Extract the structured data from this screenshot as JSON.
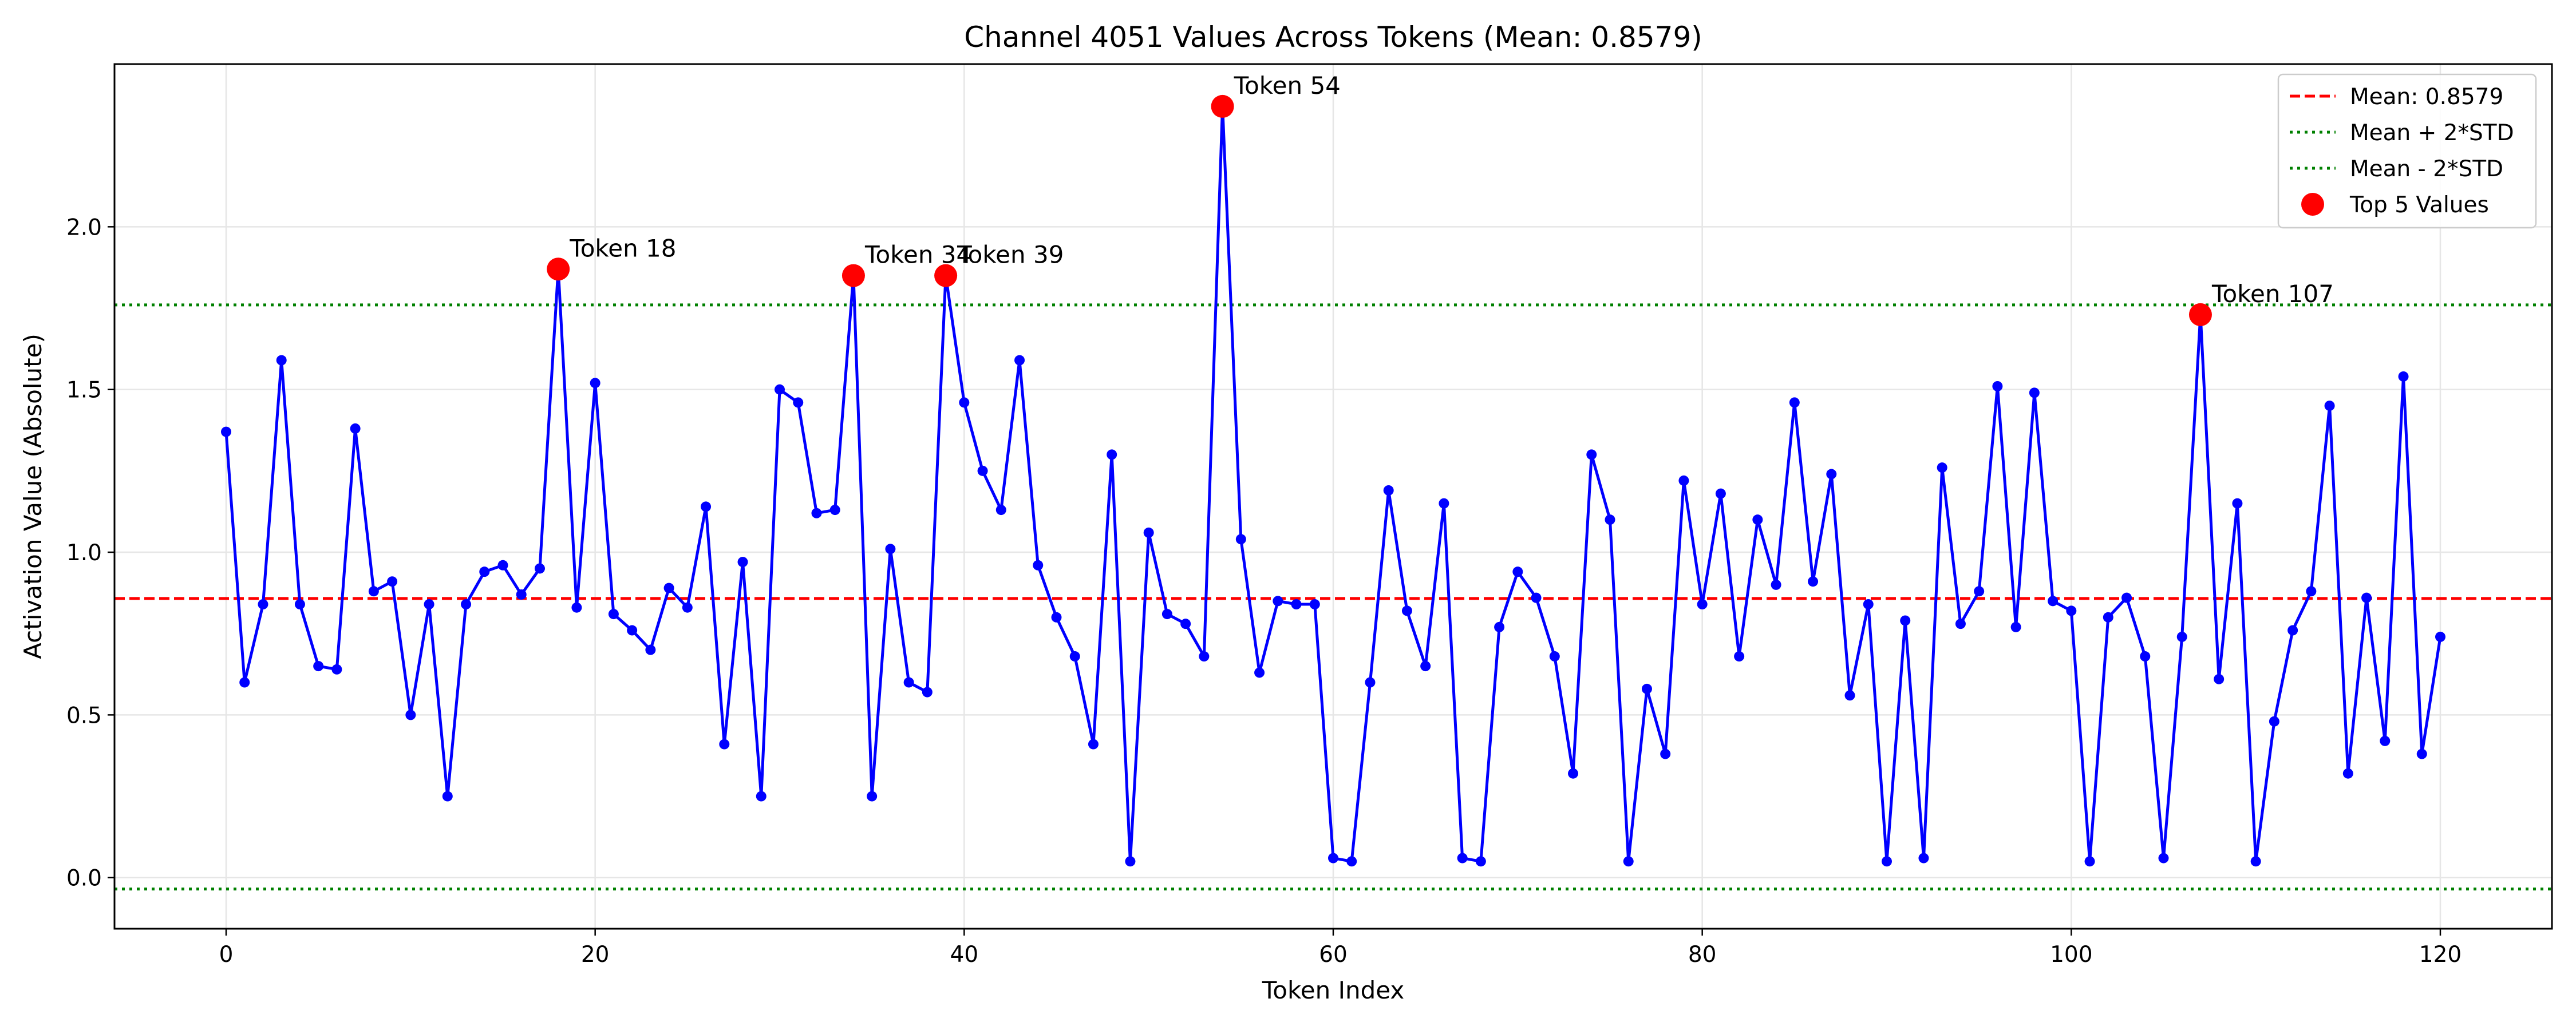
{
  "chart_data": {
    "type": "line",
    "title": "Channel 4051 Values Across Tokens (Mean: 0.8579)",
    "xlabel": "Token Index",
    "ylabel": "Activation Value (Absolute)",
    "xlim": [
      -6.05,
      126.05
    ],
    "ylim": [
      -0.157,
      2.5
    ],
    "xticks": [
      0,
      20,
      40,
      60,
      80,
      100,
      120
    ],
    "yticks": [
      0.0,
      0.5,
      1.0,
      1.5,
      2.0
    ],
    "grid": true,
    "legend_position": "top-right",
    "x": [
      0,
      1,
      2,
      3,
      4,
      5,
      6,
      7,
      8,
      9,
      10,
      11,
      12,
      13,
      14,
      15,
      16,
      17,
      18,
      19,
      20,
      21,
      22,
      23,
      24,
      25,
      26,
      27,
      28,
      29,
      30,
      31,
      32,
      33,
      34,
      35,
      36,
      37,
      38,
      39,
      40,
      41,
      42,
      43,
      44,
      45,
      46,
      47,
      48,
      49,
      50,
      51,
      52,
      53,
      54,
      55,
      56,
      57,
      58,
      59,
      60,
      61,
      62,
      63,
      64,
      65,
      66,
      67,
      68,
      69,
      70,
      71,
      72,
      73,
      74,
      75,
      76,
      77,
      78,
      79,
      80,
      81,
      82,
      83,
      84,
      85,
      86,
      87,
      88,
      89,
      90,
      91,
      92,
      93,
      94,
      95,
      96,
      97,
      98,
      99,
      100,
      101,
      102,
      103,
      104,
      105,
      106,
      107,
      108,
      109,
      110,
      111,
      112,
      113,
      114,
      115,
      116,
      117,
      118,
      119,
      120
    ],
    "series": [
      {
        "color": "#0000ff",
        "values": [
          1.37,
          0.6,
          0.84,
          1.59,
          0.84,
          0.65,
          0.64,
          1.38,
          0.88,
          0.91,
          0.5,
          0.84,
          0.25,
          0.84,
          0.94,
          0.96,
          0.87,
          0.95,
          1.87,
          0.83,
          1.52,
          0.81,
          0.76,
          0.7,
          0.89,
          0.83,
          1.14,
          0.41,
          0.97,
          0.25,
          1.5,
          1.46,
          1.12,
          1.13,
          1.85,
          0.25,
          1.01,
          0.6,
          0.57,
          1.85,
          1.46,
          1.25,
          1.13,
          1.59,
          0.96,
          0.8,
          0.68,
          0.41,
          1.3,
          0.05,
          1.06,
          0.81,
          0.78,
          0.68,
          2.37,
          1.04,
          0.63,
          0.85,
          0.84,
          0.84,
          0.06,
          0.05,
          0.6,
          1.19,
          0.82,
          0.65,
          1.15,
          0.06,
          0.05,
          0.77,
          0.94,
          0.86,
          0.68,
          0.32,
          1.3,
          1.1,
          0.05,
          0.58,
          0.38,
          1.22,
          0.84,
          1.18,
          0.68,
          1.1,
          0.9,
          1.46,
          0.91,
          1.24,
          0.56,
          0.84,
          0.05,
          0.79,
          0.06,
          1.26,
          0.78,
          0.88,
          1.51,
          0.77,
          1.49,
          0.85,
          0.82,
          0.05,
          0.8,
          0.86,
          0.68,
          0.06,
          0.74,
          1.73,
          0.61,
          1.15,
          0.05,
          0.48,
          0.76,
          0.88,
          1.45,
          0.32,
          0.86,
          0.42,
          1.54,
          0.38,
          0.74
        ]
      }
    ],
    "reference_lines": [
      {
        "label": "Mean: 0.8579",
        "value": 0.8579,
        "color": "#ff0000",
        "style": "dashed"
      },
      {
        "label": "Mean + 2*STD",
        "value": 1.76,
        "color": "#008000",
        "style": "dotted"
      },
      {
        "label": "Mean - 2*STD",
        "value": -0.035,
        "color": "#008000",
        "style": "dotted"
      }
    ],
    "top_points": {
      "label": "Top 5 Values",
      "color": "#ff0000",
      "points": [
        {
          "x": 18,
          "y": 1.87,
          "label": "Token 18"
        },
        {
          "x": 34,
          "y": 1.85,
          "label": "Token 34"
        },
        {
          "x": 39,
          "y": 1.85,
          "label": "Token 39"
        },
        {
          "x": 54,
          "y": 2.37,
          "label": "Token 54"
        },
        {
          "x": 107,
          "y": 1.73,
          "label": "Token 107"
        }
      ]
    }
  }
}
